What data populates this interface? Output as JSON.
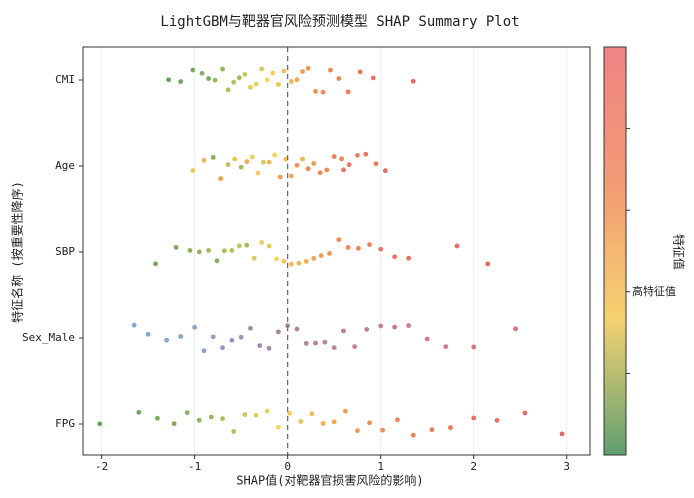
{
  "chart_data": {
    "type": "beeswarm",
    "title": "LightGBM与靶器官风险预测模型 SHAP Summary Plot",
    "xlabel": "SHAP值(对靶器官损害风险的影响)",
    "ylabel": "特征名称 (按重要性降序)",
    "xlim": [
      -2.2,
      3.25
    ],
    "xticks": [
      -2,
      -1,
      0,
      1,
      2,
      3
    ],
    "vline": 0,
    "grid": true,
    "colors": [
      "#3f8f3f",
      "#f2cf3c",
      "#f07a30",
      "#e34a4a"
    ],
    "colorbar": {
      "label": "特征值",
      "clim": [
        0,
        1
      ],
      "colors": [
        "#5f9f72",
        "#f5d270",
        "#f39a74",
        "#f08585"
      ],
      "ticks": [
        {
          "value": 0.2,
          "label": null
        },
        {
          "value": 0.4,
          "label": "高特征值"
        },
        {
          "value": 0.6,
          "label": null
        },
        {
          "value": 0.8,
          "label": null
        }
      ]
    },
    "series": [
      {
        "name": "CMI",
        "shap": [
          -1.28,
          -1.15,
          -1.02,
          -0.92,
          -0.85,
          -0.78,
          -0.7,
          -0.64,
          -0.58,
          -0.52,
          -0.46,
          -0.4,
          -0.34,
          -0.28,
          -0.22,
          -0.16,
          -0.1,
          -0.04,
          0.04,
          0.1,
          0.16,
          0.22,
          0.3,
          0.38,
          0.46,
          0.55,
          0.65,
          0.78,
          0.92,
          1.35
        ],
        "feature_values": [
          0.02,
          0.05,
          0.08,
          0.1,
          0.06,
          0.14,
          0.12,
          0.18,
          0.2,
          0.16,
          0.24,
          0.28,
          0.3,
          0.26,
          0.34,
          0.38,
          0.4,
          0.44,
          0.5,
          0.55,
          0.6,
          0.62,
          0.66,
          0.7,
          0.72,
          0.78,
          0.82,
          0.86,
          0.9,
          0.96
        ]
      },
      {
        "name": "Age",
        "shap": [
          -1.02,
          -0.9,
          -0.8,
          -0.72,
          -0.64,
          -0.57,
          -0.5,
          -0.44,
          -0.38,
          -0.32,
          -0.26,
          -0.2,
          -0.14,
          -0.08,
          -0.02,
          0.04,
          0.1,
          0.16,
          0.22,
          0.28,
          0.35,
          0.42,
          0.5,
          0.58,
          0.66,
          0.75,
          0.84,
          0.95,
          1.05,
          0.6
        ],
        "feature_values": [
          0.3,
          0.5,
          0.1,
          0.6,
          0.2,
          0.45,
          0.15,
          0.55,
          0.3,
          0.4,
          0.25,
          0.5,
          0.35,
          0.6,
          0.45,
          0.55,
          0.65,
          0.5,
          0.7,
          0.6,
          0.75,
          0.7,
          0.8,
          0.72,
          0.85,
          0.78,
          0.9,
          0.82,
          0.95,
          0.88
        ]
      },
      {
        "name": "SBP",
        "shap": [
          -1.42,
          -1.2,
          -1.05,
          -0.95,
          -0.85,
          -0.76,
          -0.68,
          -0.6,
          -0.52,
          -0.44,
          -0.36,
          -0.28,
          -0.2,
          -0.12,
          -0.04,
          0.04,
          0.12,
          0.2,
          0.28,
          0.36,
          0.45,
          0.55,
          0.65,
          0.76,
          0.88,
          1.0,
          1.15,
          1.3,
          1.82,
          2.15
        ],
        "feature_values": [
          0.05,
          0.08,
          0.1,
          0.12,
          0.15,
          0.1,
          0.18,
          0.2,
          0.22,
          0.16,
          0.26,
          0.3,
          0.28,
          0.34,
          0.4,
          0.46,
          0.5,
          0.52,
          0.56,
          0.6,
          0.64,
          0.68,
          0.72,
          0.76,
          0.8,
          0.84,
          0.86,
          0.9,
          0.94,
          0.97
        ]
      },
      {
        "name": "Sex_Male",
        "colors": [
          "#6b9bd1",
          "#8a7a9e",
          "#b86a80",
          "#d05a60"
        ],
        "shap": [
          -1.65,
          -1.5,
          -1.3,
          -1.15,
          -1.0,
          -0.9,
          -0.8,
          -0.7,
          -0.6,
          -0.5,
          -0.4,
          -0.3,
          -0.2,
          -0.1,
          0.0,
          0.1,
          0.2,
          0.3,
          0.4,
          0.5,
          0.6,
          0.72,
          0.85,
          1.0,
          1.15,
          1.3,
          1.5,
          1.7,
          2.0,
          2.45
        ],
        "feature_values": [
          0.02,
          0.04,
          0.06,
          0.08,
          0.1,
          0.12,
          0.15,
          0.18,
          0.2,
          0.25,
          0.3,
          0.35,
          0.4,
          0.42,
          0.45,
          0.5,
          0.52,
          0.55,
          0.6,
          0.62,
          0.65,
          0.7,
          0.72,
          0.75,
          0.8,
          0.82,
          0.85,
          0.9,
          0.94,
          0.98
        ]
      },
      {
        "name": "FPG",
        "shap": [
          -2.02,
          -1.6,
          -1.4,
          -1.22,
          -1.08,
          -0.95,
          -0.82,
          -0.7,
          -0.58,
          -0.46,
          -0.34,
          -0.22,
          -0.1,
          0.02,
          0.14,
          0.26,
          0.38,
          0.5,
          0.62,
          0.75,
          0.88,
          1.02,
          1.18,
          1.35,
          1.55,
          1.75,
          2.0,
          2.25,
          2.55,
          2.95
        ],
        "feature_values": [
          0.02,
          0.04,
          0.06,
          0.08,
          0.1,
          0.12,
          0.14,
          0.18,
          0.2,
          0.24,
          0.28,
          0.3,
          0.34,
          0.38,
          0.42,
          0.46,
          0.5,
          0.54,
          0.58,
          0.62,
          0.66,
          0.7,
          0.74,
          0.78,
          0.82,
          0.86,
          0.9,
          0.93,
          0.96,
          0.99
        ]
      }
    ]
  }
}
